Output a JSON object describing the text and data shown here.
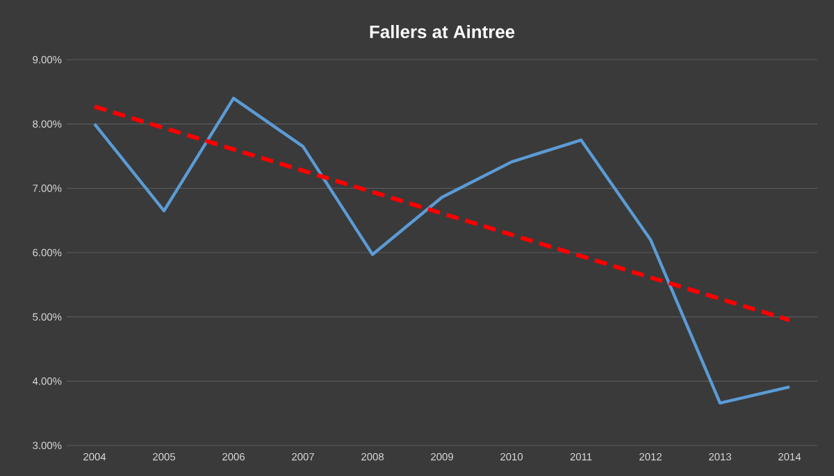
{
  "chart_data": {
    "type": "line",
    "title": "Fallers at Aintree",
    "x": [
      2004,
      2005,
      2006,
      2007,
      2008,
      2009,
      2010,
      2011,
      2012,
      2013,
      2014
    ],
    "xlim": [
      2003.6,
      2014.4
    ],
    "xticks": [
      2004,
      2005,
      2006,
      2007,
      2008,
      2009,
      2010,
      2011,
      2012,
      2013,
      2014
    ],
    "ylim": [
      3,
      9
    ],
    "yticks": [
      {
        "value": 3,
        "label": "3.00%"
      },
      {
        "value": 4,
        "label": "4.00%"
      },
      {
        "value": 5,
        "label": "5.00%"
      },
      {
        "value": 6,
        "label": "6.00%"
      },
      {
        "value": 7,
        "label": "7.00%"
      },
      {
        "value": 8,
        "label": "8.00%"
      },
      {
        "value": 9,
        "label": "9.00%"
      }
    ],
    "grid": "y",
    "marker": "none",
    "series": [
      {
        "color": "#5b9bd5",
        "line_style": "solid",
        "values": [
          8.0,
          6.65,
          8.4,
          7.65,
          5.97,
          6.86,
          7.41,
          7.75,
          6.2,
          3.66,
          3.91
        ]
      },
      {
        "color": "#ff0000",
        "line_style": "dashed",
        "x": [
          2004,
          2014
        ],
        "values": [
          8.27,
          4.95
        ]
      }
    ]
  }
}
